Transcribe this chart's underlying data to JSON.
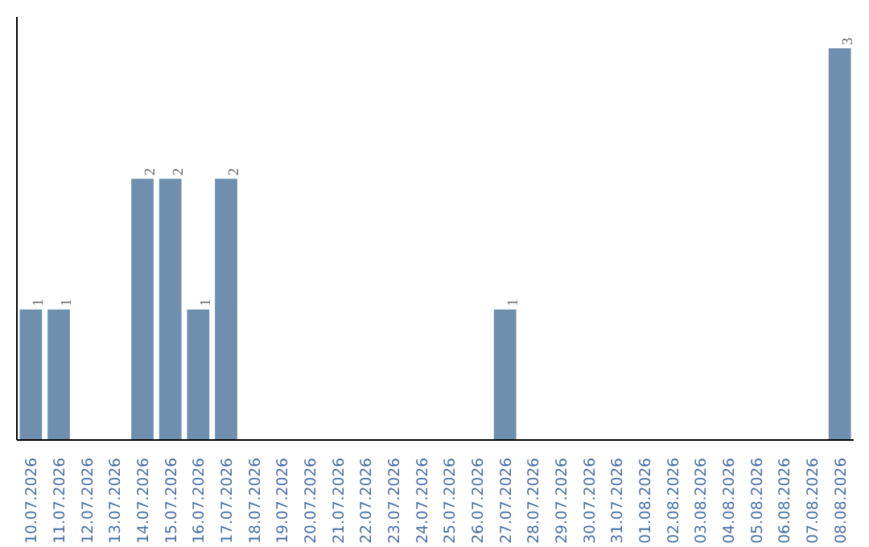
{
  "chart_data": {
    "type": "bar",
    "categories": [
      "10.07.2026",
      "11.07.2026",
      "12.07.2026",
      "13.07.2026",
      "14.07.2026",
      "15.07.2026",
      "16.07.2026",
      "17.07.2026",
      "18.07.2026",
      "19.07.2026",
      "20.07.2026",
      "21.07.2026",
      "22.07.2026",
      "23.07.2026",
      "24.07.2026",
      "25.07.2026",
      "26.07.2026",
      "27.07.2026",
      "28.07.2026",
      "29.07.2026",
      "30.07.2026",
      "31.07.2026",
      "01.08.2026",
      "02.08.2026",
      "03.08.2026",
      "04.08.2026",
      "05.08.2026",
      "06.08.2026",
      "07.08.2026",
      "08.08.2026"
    ],
    "values": [
      1,
      1,
      0,
      0,
      2,
      2,
      1,
      2,
      0,
      0,
      0,
      0,
      0,
      0,
      0,
      0,
      0,
      1,
      0,
      0,
      0,
      0,
      0,
      0,
      0,
      0,
      0,
      0,
      0,
      3
    ],
    "value_labels": [
      "1",
      "1",
      null,
      null,
      "2",
      "2",
      "1",
      "2",
      null,
      null,
      null,
      null,
      null,
      null,
      null,
      null,
      null,
      "1",
      null,
      null,
      null,
      null,
      null,
      null,
      null,
      null,
      null,
      null,
      null,
      "3"
    ],
    "color": "#6e8fad",
    "tick_labels": "x",
    "grid": false
  }
}
